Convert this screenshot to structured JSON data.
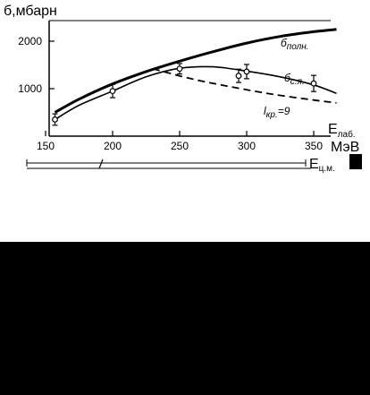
{
  "chart_data": {
    "type": "line",
    "ylabel": "б,мбарн",
    "xlabel_lab": "E",
    "xlabel_lab_sub": "лаб.",
    "xunit": "МэВ",
    "xlabel_cm": "E",
    "xlabel_cm_sub": "ц.м.",
    "xlim": [
      145,
      375
    ],
    "ylim": [
      0,
      2500
    ],
    "xticks": [
      150,
      200,
      250,
      300,
      350
    ],
    "yticks": [
      1000,
      2000
    ],
    "grid": false,
    "series": [
      {
        "name": "б",
        "name_sub": "полн.",
        "style": "thick-solid",
        "x": [
          157,
          175,
          200,
          225,
          250,
          275,
          300,
          325,
          350,
          367
        ],
        "y": [
          500,
          780,
          1100,
          1360,
          1580,
          1780,
          1960,
          2100,
          2200,
          2250
        ]
      },
      {
        "name": "б",
        "name_sub": "с.я.",
        "style": "solid-with-error-bars",
        "x": [
          157,
          175,
          200,
          225,
          250,
          275,
          300,
          325,
          350,
          367
        ],
        "y": [
          350,
          650,
          950,
          1250,
          1430,
          1460,
          1370,
          1250,
          1080,
          900
        ],
        "points": [
          {
            "x": 157,
            "y": 350,
            "err": 120
          },
          {
            "x": 200,
            "y": 950,
            "err": 140
          },
          {
            "x": 250,
            "y": 1420,
            "err": 110
          },
          {
            "x": 294,
            "y": 1270,
            "err": 140
          },
          {
            "x": 300,
            "y": 1360,
            "err": 150
          },
          {
            "x": 350,
            "y": 1110,
            "err": 170
          }
        ]
      },
      {
        "name": "l",
        "name_sub": "кр.",
        "name_suffix": "=9",
        "style": "dashed",
        "x": [
          230,
          260,
          290,
          320,
          350,
          367
        ],
        "y": [
          1420,
          1200,
          1030,
          880,
          760,
          700
        ]
      }
    ]
  },
  "colors": {
    "ink": "#000000",
    "background": "#ffffff"
  }
}
